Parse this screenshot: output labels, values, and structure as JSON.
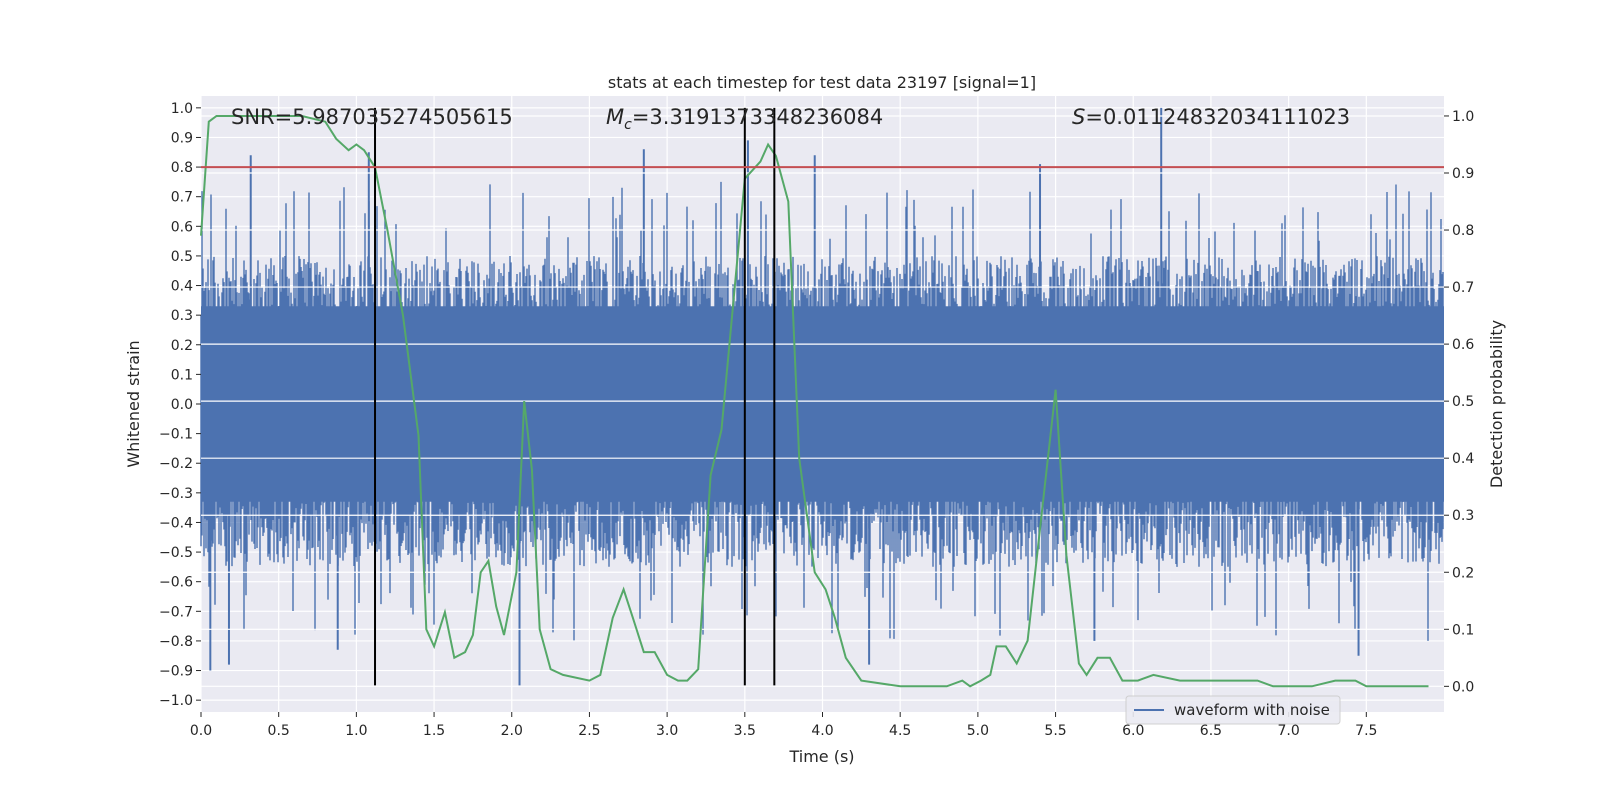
{
  "chart_data": {
    "type": "line",
    "title": "stats at each timestep for test data 23197 [signal=1]",
    "xlabel": "Time (s)",
    "ylabel": "Whitened strain",
    "y2label": "Detection probability",
    "xlim": [
      0.0,
      8.0
    ],
    "ylim": [
      -1.04,
      1.04
    ],
    "y2lim": [
      -0.045,
      1.035
    ],
    "grid": true,
    "legend_position": "lower-right",
    "x_ticks": [
      "0.0",
      "0.5",
      "1.0",
      "1.5",
      "2.0",
      "2.5",
      "3.0",
      "3.5",
      "4.0",
      "4.5",
      "5.0",
      "5.5",
      "6.0",
      "6.5",
      "7.0",
      "7.5"
    ],
    "x_tick_values": [
      0.0,
      0.5,
      1.0,
      1.5,
      2.0,
      2.5,
      3.0,
      3.5,
      4.0,
      4.5,
      5.0,
      5.5,
      6.0,
      6.5,
      7.0,
      7.5
    ],
    "y_ticks": [
      "1.0",
      "0.9",
      "0.8",
      "0.7",
      "0.6",
      "0.5",
      "0.4",
      "0.3",
      "0.2",
      "0.1",
      "0.0",
      "-0.1",
      "-0.2",
      "-0.3",
      "-0.4",
      "-0.5",
      "-0.6",
      "-0.7",
      "-0.8",
      "-0.9",
      "-1.0"
    ],
    "y_tick_values": [
      1.0,
      0.9,
      0.8,
      0.7,
      0.6,
      0.5,
      0.4,
      0.3,
      0.2,
      0.1,
      0.0,
      -0.1,
      -0.2,
      -0.3,
      -0.4,
      -0.5,
      -0.6,
      -0.7,
      -0.8,
      -0.9,
      -1.0
    ],
    "y2_ticks": [
      "1.0",
      "0.9",
      "0.8",
      "0.7",
      "0.6",
      "0.5",
      "0.4",
      "0.3",
      "0.2",
      "0.1",
      "0.0"
    ],
    "y2_tick_values": [
      1.0,
      0.9,
      0.8,
      0.7,
      0.6,
      0.5,
      0.4,
      0.3,
      0.2,
      0.1,
      0.0
    ],
    "annotations": {
      "snr": "SNR=5.987035274505615",
      "mc_symbol": "M",
      "mc_subscript": "c",
      "mc_value": "=3.3191373348236084",
      "s_symbol": "S",
      "s_value": "=0.01124832034111023"
    },
    "series": [
      {
        "name": "waveform with noise",
        "axis": "left",
        "color": "#4c72b0",
        "band_core": [
          -0.33,
          0.33
        ],
        "typical_extent": [
          -0.55,
          0.5
        ],
        "peaks": [
          {
            "x": 0.32,
            "y": 0.84
          },
          {
            "x": 1.08,
            "y": 0.85
          },
          {
            "x": 2.85,
            "y": 0.86
          },
          {
            "x": 3.52,
            "y": 0.89
          },
          {
            "x": 3.95,
            "y": 0.84
          },
          {
            "x": 5.4,
            "y": 0.81
          },
          {
            "x": 6.18,
            "y": 1.0
          },
          {
            "x": 0.06,
            "y": -0.9
          },
          {
            "x": 0.18,
            "y": -0.88
          },
          {
            "x": 0.88,
            "y": -0.83
          },
          {
            "x": 2.05,
            "y": -0.95
          },
          {
            "x": 4.3,
            "y": -0.88
          },
          {
            "x": 7.45,
            "y": -0.85
          },
          {
            "x": 5.75,
            "y": -0.8
          }
        ]
      },
      {
        "name": "",
        "axis": "right",
        "color": "#55a868",
        "x": [
          0.0,
          0.05,
          0.1,
          0.2,
          0.3,
          0.5,
          0.65,
          0.8,
          0.87,
          0.95,
          1.0,
          1.05,
          1.12,
          1.2,
          1.3,
          1.4,
          1.45,
          1.5,
          1.57,
          1.63,
          1.7,
          1.75,
          1.8,
          1.85,
          1.9,
          1.95,
          2.03,
          2.08,
          2.13,
          2.18,
          2.25,
          2.33,
          2.5,
          2.57,
          2.65,
          2.72,
          2.78,
          2.85,
          2.92,
          3.0,
          3.07,
          3.13,
          3.2,
          3.28,
          3.35,
          3.5,
          3.6,
          3.65,
          3.7,
          3.78,
          3.85,
          3.95,
          4.02,
          4.08,
          4.15,
          4.25,
          4.5,
          4.8,
          4.9,
          4.95,
          5.02,
          5.08,
          5.12,
          5.18,
          5.25,
          5.32,
          5.43,
          5.5,
          5.57,
          5.65,
          5.7,
          5.77,
          5.85,
          5.93,
          6.03,
          6.13,
          6.3,
          6.45,
          6.55,
          6.62,
          6.7,
          6.8,
          6.9,
          7.0,
          7.15,
          7.3,
          7.43,
          7.5,
          7.7,
          7.9
        ],
        "y": [
          0.79,
          0.99,
          1.0,
          1.0,
          1.0,
          1.0,
          1.0,
          0.99,
          0.96,
          0.94,
          0.95,
          0.94,
          0.91,
          0.8,
          0.65,
          0.44,
          0.1,
          0.07,
          0.13,
          0.05,
          0.06,
          0.09,
          0.2,
          0.22,
          0.14,
          0.09,
          0.2,
          0.5,
          0.38,
          0.1,
          0.03,
          0.02,
          0.01,
          0.02,
          0.12,
          0.17,
          0.12,
          0.06,
          0.06,
          0.02,
          0.01,
          0.01,
          0.03,
          0.37,
          0.45,
          0.89,
          0.92,
          0.95,
          0.93,
          0.85,
          0.4,
          0.2,
          0.17,
          0.12,
          0.05,
          0.01,
          0.0,
          0.0,
          0.01,
          0.0,
          0.01,
          0.02,
          0.07,
          0.07,
          0.04,
          0.08,
          0.35,
          0.52,
          0.23,
          0.04,
          0.02,
          0.05,
          0.05,
          0.01,
          0.01,
          0.02,
          0.01,
          0.01,
          0.01,
          0.01,
          0.01,
          0.01,
          0.0,
          0.0,
          0.0,
          0.01,
          0.01,
          0.0,
          0.0,
          0.0
        ]
      }
    ],
    "vlines": [
      1.12,
      3.5,
      3.69
    ],
    "hline": {
      "y": 0.8,
      "color": "#c44e52"
    },
    "legend": {
      "label": "waveform with noise"
    }
  }
}
